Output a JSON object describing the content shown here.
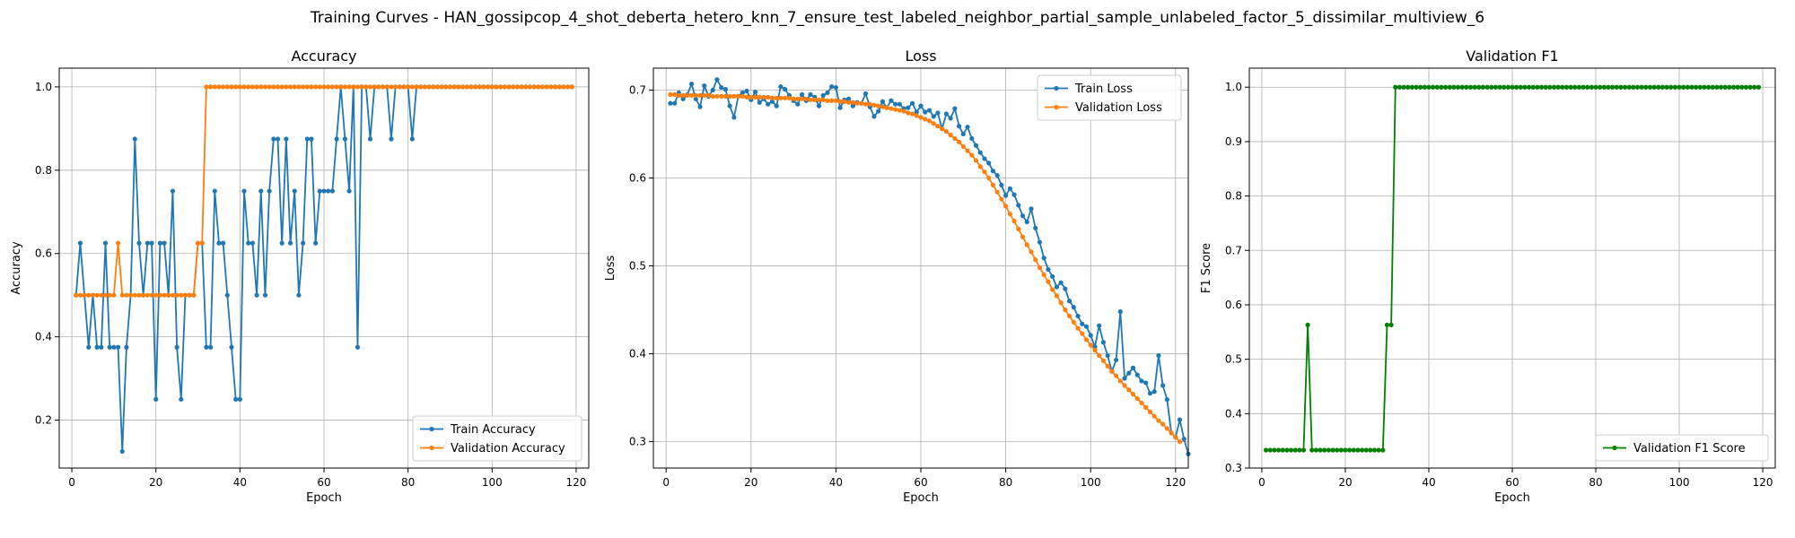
{
  "figure": {
    "title": "Training Curves - HAN_gossipcop_4_shot_deberta_hetero_knn_7_ensure_test_labeled_neighbor_partial_sample_unlabeled_factor_5_dissimilar_multiview_6"
  },
  "chart_data": [
    {
      "type": "line",
      "title": "Accuracy",
      "xlabel": "Epoch",
      "ylabel": "Accuracy",
      "xlim": [
        -3,
        123
      ],
      "ylim": [
        0.085,
        1.045
      ],
      "xticks": [
        0,
        20,
        40,
        60,
        80,
        100,
        120
      ],
      "yticks": [
        0.2,
        0.4,
        0.6,
        0.8,
        1.0
      ],
      "ytick_labels": [
        "0.2",
        "0.4",
        "0.6",
        "0.8",
        "1.0"
      ],
      "grid": true,
      "legend": "lower-right",
      "series": [
        {
          "name": "Train Accuracy",
          "color": "#1f77b4",
          "x_start": 1,
          "values": [
            0.5,
            0.625,
            0.5,
            0.375,
            0.5,
            0.375,
            0.375,
            0.625,
            0.375,
            0.375,
            0.375,
            0.125,
            0.375,
            0.5,
            0.875,
            0.625,
            0.5,
            0.625,
            0.625,
            0.25,
            0.625,
            0.625,
            0.5,
            0.75,
            0.375,
            0.25,
            0.5,
            0.5,
            0.5,
            0.625,
            0.625,
            0.375,
            0.375,
            0.75,
            0.625,
            0.625,
            0.5,
            0.375,
            0.25,
            0.25,
            0.75,
            0.625,
            0.625,
            0.5,
            0.75,
            0.5,
            0.75,
            0.875,
            0.875,
            0.625,
            0.875,
            0.625,
            0.75,
            0.5,
            0.625,
            0.875,
            0.875,
            0.625,
            0.75,
            0.75,
            0.75,
            0.75,
            0.875,
            1.0,
            0.875,
            0.75,
            1.0,
            0.375,
            1.0,
            1.0,
            0.875,
            1.0,
            1.0,
            1.0,
            1.0,
            0.875,
            1.0,
            1.0,
            1.0,
            1.0,
            0.875,
            1.0,
            1.0,
            1.0,
            1.0,
            1.0,
            1.0,
            1.0,
            1.0,
            1.0,
            1.0,
            1.0,
            1.0,
            1.0,
            1.0,
            1.0,
            1.0,
            1.0,
            1.0,
            1.0,
            1.0,
            1.0,
            1.0,
            1.0,
            1.0,
            1.0,
            1.0,
            1.0,
            1.0,
            1.0,
            1.0,
            1.0,
            1.0,
            1.0,
            1.0,
            1.0,
            1.0,
            1.0,
            1.0
          ]
        },
        {
          "name": "Validation Accuracy",
          "color": "#ff7f0e",
          "x_start": 1,
          "values": [
            0.5,
            0.5,
            0.5,
            0.5,
            0.5,
            0.5,
            0.5,
            0.5,
            0.5,
            0.5,
            0.625,
            0.5,
            0.5,
            0.5,
            0.5,
            0.5,
            0.5,
            0.5,
            0.5,
            0.5,
            0.5,
            0.5,
            0.5,
            0.5,
            0.5,
            0.5,
            0.5,
            0.5,
            0.5,
            0.625,
            0.625,
            1.0,
            1.0,
            1.0,
            1.0,
            1.0,
            1.0,
            1.0,
            1.0,
            1.0,
            1.0,
            1.0,
            1.0,
            1.0,
            1.0,
            1.0,
            1.0,
            1.0,
            1.0,
            1.0,
            1.0,
            1.0,
            1.0,
            1.0,
            1.0,
            1.0,
            1.0,
            1.0,
            1.0,
            1.0,
            1.0,
            1.0,
            1.0,
            1.0,
            1.0,
            1.0,
            1.0,
            1.0,
            1.0,
            1.0,
            1.0,
            1.0,
            1.0,
            1.0,
            1.0,
            1.0,
            1.0,
            1.0,
            1.0,
            1.0,
            1.0,
            1.0,
            1.0,
            1.0,
            1.0,
            1.0,
            1.0,
            1.0,
            1.0,
            1.0,
            1.0,
            1.0,
            1.0,
            1.0,
            1.0,
            1.0,
            1.0,
            1.0,
            1.0,
            1.0,
            1.0,
            1.0,
            1.0,
            1.0,
            1.0,
            1.0,
            1.0,
            1.0,
            1.0,
            1.0,
            1.0,
            1.0,
            1.0,
            1.0,
            1.0,
            1.0,
            1.0,
            1.0,
            1.0
          ]
        }
      ]
    },
    {
      "type": "line",
      "title": "Loss",
      "xlabel": "Epoch",
      "ylabel": "Loss",
      "xlim": [
        -3,
        123
      ],
      "ylim": [
        0.27,
        0.725
      ],
      "xticks": [
        0,
        20,
        40,
        60,
        80,
        100,
        120
      ],
      "yticks": [
        0.3,
        0.4,
        0.5,
        0.6,
        0.7
      ],
      "ytick_labels": [
        "0.3",
        "0.4",
        "0.5",
        "0.6",
        "0.7"
      ],
      "grid": true,
      "legend": "top-right",
      "series": [
        {
          "name": "Train Loss",
          "color": "#1f77b4",
          "x_start": 1,
          "values": [
            0.685,
            0.685,
            0.697,
            0.69,
            0.695,
            0.707,
            0.69,
            0.681,
            0.705,
            0.693,
            0.7,
            0.712,
            0.703,
            0.701,
            0.682,
            0.669,
            0.693,
            0.697,
            0.699,
            0.689,
            0.698,
            0.686,
            0.69,
            0.684,
            0.687,
            0.682,
            0.704,
            0.701,
            0.694,
            0.688,
            0.684,
            0.695,
            0.688,
            0.695,
            0.692,
            0.682,
            0.694,
            0.697,
            0.704,
            0.703,
            0.68,
            0.689,
            0.69,
            0.682,
            0.686,
            0.685,
            0.696,
            0.681,
            0.67,
            0.676,
            0.687,
            0.68,
            0.688,
            0.684,
            0.684,
            0.679,
            0.68,
            0.685,
            0.675,
            0.682,
            0.675,
            0.677,
            0.67,
            0.674,
            0.656,
            0.673,
            0.668,
            0.679,
            0.659,
            0.65,
            0.658,
            0.645,
            0.637,
            0.629,
            0.622,
            0.617,
            0.608,
            0.603,
            0.592,
            0.58,
            0.588,
            0.581,
            0.569,
            0.557,
            0.55,
            0.565,
            0.543,
            0.527,
            0.509,
            0.496,
            0.488,
            0.476,
            0.481,
            0.474,
            0.46,
            0.453,
            0.443,
            0.434,
            0.431,
            0.421,
            0.408,
            0.432,
            0.413,
            0.398,
            0.38,
            0.393,
            0.448,
            0.372,
            0.378,
            0.384,
            0.376,
            0.369,
            0.367,
            0.355,
            0.357,
            0.398,
            0.364,
            0.348,
            0.31,
            0.305,
            0.325,
            0.303,
            0.286
          ]
        },
        {
          "name": "Validation Loss",
          "color": "#ff7f0e",
          "x_start": 1,
          "values": [
            0.695,
            0.695,
            0.694,
            0.694,
            0.694,
            0.694,
            0.694,
            0.694,
            0.694,
            0.694,
            0.693,
            0.693,
            0.693,
            0.693,
            0.693,
            0.693,
            0.693,
            0.693,
            0.692,
            0.692,
            0.692,
            0.692,
            0.692,
            0.692,
            0.691,
            0.691,
            0.691,
            0.691,
            0.691,
            0.69,
            0.69,
            0.69,
            0.69,
            0.689,
            0.689,
            0.689,
            0.689,
            0.688,
            0.688,
            0.688,
            0.687,
            0.687,
            0.686,
            0.686,
            0.685,
            0.685,
            0.684,
            0.684,
            0.683,
            0.682,
            0.681,
            0.68,
            0.679,
            0.678,
            0.677,
            0.676,
            0.674,
            0.673,
            0.671,
            0.669,
            0.667,
            0.665,
            0.662,
            0.659,
            0.656,
            0.653,
            0.649,
            0.645,
            0.641,
            0.636,
            0.631,
            0.626,
            0.62,
            0.613,
            0.607,
            0.6,
            0.592,
            0.584,
            0.576,
            0.568,
            0.559,
            0.551,
            0.542,
            0.533,
            0.524,
            0.516,
            0.507,
            0.498,
            0.49,
            0.482,
            0.473,
            0.466,
            0.458,
            0.45,
            0.443,
            0.436,
            0.429,
            0.423,
            0.416,
            0.41,
            0.404,
            0.398,
            0.392,
            0.386,
            0.38,
            0.375,
            0.369,
            0.364,
            0.359,
            0.354,
            0.349,
            0.344,
            0.339,
            0.334,
            0.329,
            0.324,
            0.32,
            0.315,
            0.31,
            0.305,
            0.3
          ]
        }
      ]
    },
    {
      "type": "line",
      "title": "Validation F1",
      "xlabel": "Epoch",
      "ylabel": "F1 Score",
      "xlim": [
        -3,
        123
      ],
      "ylim": [
        0.3,
        1.035
      ],
      "xticks": [
        0,
        20,
        40,
        60,
        80,
        100,
        120
      ],
      "yticks": [
        0.3,
        0.4,
        0.5,
        0.6,
        0.7,
        0.8,
        0.9,
        1.0
      ],
      "ytick_labels": [
        "0.3",
        "0.4",
        "0.5",
        "0.6",
        "0.7",
        "0.8",
        "0.9",
        "1.0"
      ],
      "grid": true,
      "legend": "lower-right",
      "series": [
        {
          "name": "Validation F1 Score",
          "color": "#008000",
          "x_start": 1,
          "values": [
            0.333,
            0.333,
            0.333,
            0.333,
            0.333,
            0.333,
            0.333,
            0.333,
            0.333,
            0.333,
            0.563,
            0.333,
            0.333,
            0.333,
            0.333,
            0.333,
            0.333,
            0.333,
            0.333,
            0.333,
            0.333,
            0.333,
            0.333,
            0.333,
            0.333,
            0.333,
            0.333,
            0.333,
            0.333,
            0.563,
            0.563,
            1.0,
            1.0,
            1.0,
            1.0,
            1.0,
            1.0,
            1.0,
            1.0,
            1.0,
            1.0,
            1.0,
            1.0,
            1.0,
            1.0,
            1.0,
            1.0,
            1.0,
            1.0,
            1.0,
            1.0,
            1.0,
            1.0,
            1.0,
            1.0,
            1.0,
            1.0,
            1.0,
            1.0,
            1.0,
            1.0,
            1.0,
            1.0,
            1.0,
            1.0,
            1.0,
            1.0,
            1.0,
            1.0,
            1.0,
            1.0,
            1.0,
            1.0,
            1.0,
            1.0,
            1.0,
            1.0,
            1.0,
            1.0,
            1.0,
            1.0,
            1.0,
            1.0,
            1.0,
            1.0,
            1.0,
            1.0,
            1.0,
            1.0,
            1.0,
            1.0,
            1.0,
            1.0,
            1.0,
            1.0,
            1.0,
            1.0,
            1.0,
            1.0,
            1.0,
            1.0,
            1.0,
            1.0,
            1.0,
            1.0,
            1.0,
            1.0,
            1.0,
            1.0,
            1.0,
            1.0,
            1.0,
            1.0,
            1.0,
            1.0,
            1.0,
            1.0,
            1.0,
            1.0
          ]
        }
      ]
    }
  ]
}
